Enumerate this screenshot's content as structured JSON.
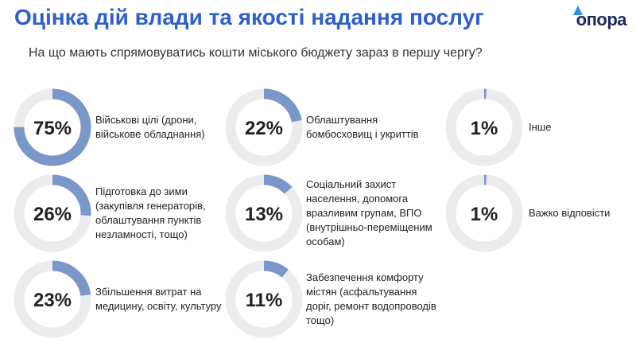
{
  "title": "Оцінка дій влади та якості надання послуг",
  "subtitle": "На що мають спрямовуватись кошти міського бюджету зараз в першу чергу?",
  "logo": "опора",
  "chart_data": [
    {
      "type": "donut",
      "categories": [
        "Військові цілі (дрони, військове обладнання)"
      ],
      "values": [
        75
      ],
      "value_labels": [
        "75%"
      ],
      "ylim": [
        0,
        100
      ],
      "color": "#7b96c8"
    },
    {
      "type": "donut",
      "categories": [
        "Підготовка до зими (закупівля генераторів, облаштування пунктів незламності, тощо)"
      ],
      "values": [
        26
      ],
      "value_labels": [
        "26%"
      ],
      "ylim": [
        0,
        100
      ],
      "color": "#7b96c8"
    },
    {
      "type": "donut",
      "categories": [
        "Збільшення витрат на медицину, освіту, культуру"
      ],
      "values": [
        23
      ],
      "value_labels": [
        "23%"
      ],
      "ylim": [
        0,
        100
      ],
      "color": "#7b96c8"
    },
    {
      "type": "donut",
      "categories": [
        "Облаштування бомбосховищ і укриттів"
      ],
      "values": [
        22
      ],
      "value_labels": [
        "22%"
      ],
      "ylim": [
        0,
        100
      ],
      "color": "#7b96c8"
    },
    {
      "type": "donut",
      "categories": [
        "Соціальний захист населення, допомога вразливим групам, ВПО (внутрішньо-переміщеним особам)"
      ],
      "values": [
        13
      ],
      "value_labels": [
        "13%"
      ],
      "ylim": [
        0,
        100
      ],
      "color": "#7b96c8"
    },
    {
      "type": "donut",
      "categories": [
        "Забезпечення комфорту містян (асфальтування доріг, ремонт водопроводів тощо)"
      ],
      "values": [
        11
      ],
      "value_labels": [
        "11%"
      ],
      "ylim": [
        0,
        100
      ],
      "color": "#7b96c8"
    },
    {
      "type": "donut",
      "categories": [
        "Інше"
      ],
      "values": [
        1
      ],
      "value_labels": [
        "1%"
      ],
      "ylim": [
        0,
        100
      ],
      "color": "#7b96c8"
    },
    {
      "type": "donut",
      "categories": [
        "Важко відповісти"
      ],
      "values": [
        1
      ],
      "value_labels": [
        "1%"
      ],
      "ylim": [
        0,
        100
      ],
      "color": "#7b96c8"
    }
  ]
}
